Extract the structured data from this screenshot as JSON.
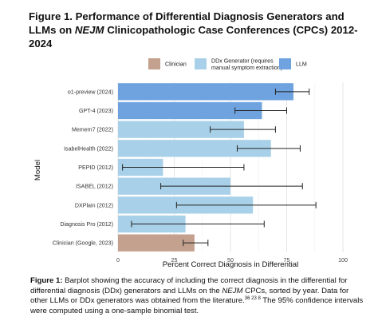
{
  "figure": {
    "title_prefix": "Figure 1. Performance of Differential Diagnosis Generators and LLMs on",
    "title_journal": "NEJM",
    "title_suffix": " Clinicopathologic Case Conferences (CPCs) 2012-2024"
  },
  "legend": [
    {
      "label": "Clinician",
      "color": "#c4a08e"
    },
    {
      "label": "DDx Generator (requires manual symptom extraction)",
      "color": "#a8d1e9"
    },
    {
      "label": "LLM",
      "color": "#6fa3e0"
    }
  ],
  "chart_data": {
    "type": "bar",
    "orientation": "horizontal",
    "categories": [
      "o1-preview (2024)",
      "GPT-4 (2023)",
      "Memem7 (2022)",
      "IsabelHealth (2022)",
      "PEPID (2012)",
      "ISABEL (2012)",
      "DXPlain (2012)",
      "Diagnosis Pro (2012)",
      "Clinician (Google, 2023)"
    ],
    "values": [
      78,
      64,
      56,
      68,
      20,
      50,
      60,
      30,
      34
    ],
    "ci_lower": [
      70,
      52,
      41,
      53,
      2,
      19,
      26,
      6,
      29
    ],
    "ci_upper": [
      85,
      75,
      70,
      81,
      56,
      82,
      88,
      65,
      40
    ],
    "groups": [
      "LLM",
      "LLM",
      "DDx Generator (requires manual symptom extraction)",
      "DDx Generator (requires manual symptom extraction)",
      "DDx Generator (requires manual symptom extraction)",
      "DDx Generator (requires manual symptom extraction)",
      "DDx Generator (requires manual symptom extraction)",
      "DDx Generator (requires manual symptom extraction)",
      "Clinician"
    ],
    "xlabel": "Percent Correct Diagnosis in Differential",
    "ylabel": "Model",
    "xlim": [
      0,
      100
    ],
    "xticks": [
      0,
      25,
      50,
      75,
      100
    ],
    "grid": true,
    "legend_position": "top-right"
  },
  "caption": {
    "label": "Figure 1:",
    "text_1": " Barplot showing the accuracy of including the correct diagnosis in the differential for differential diagnosis (DDx) generators and LLMs on the ",
    "journal": "NEJM",
    "text_2": " CPCs, sorted by year. Data for other LLMs or DDx generators was obtained from the literature.",
    "refs": "36 23 8",
    "text_3": " The 95% confidence intervals were computed using a one-sample binomial test."
  }
}
